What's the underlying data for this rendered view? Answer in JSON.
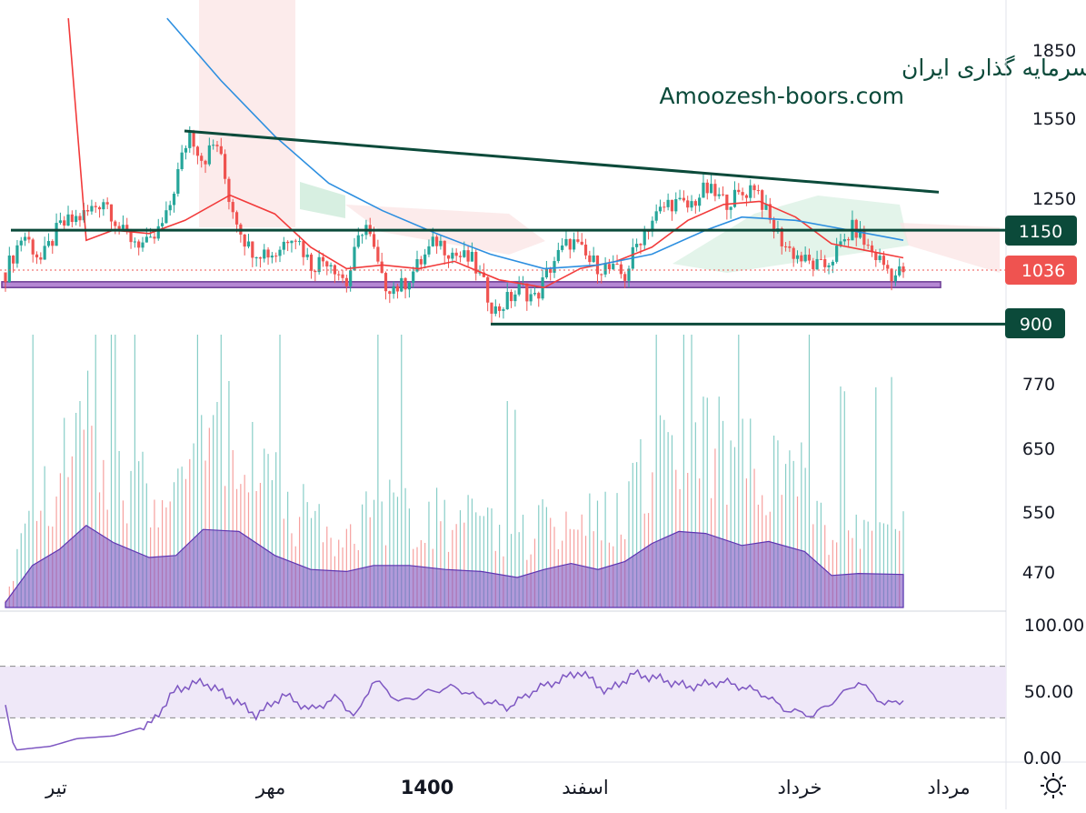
{
  "watermark": {
    "line1": "انجمن خبرگان سرمایه گذاری ایران",
    "line2": "Amoozesh-boors.com"
  },
  "colors": {
    "up": "#26a69a",
    "down": "#ef5350",
    "trend_line": "#0b4a3a",
    "support_zone": "#9c5fc4",
    "ma_fast": "#f23b3b",
    "ma_slow": "#2d8fe0",
    "volume_area": "#7e57c2",
    "rsi_line": "#7e57c2",
    "rsi_band": "#efe8f8",
    "last_price": "#ef5350",
    "level_label": "#0b4a3a"
  },
  "icons": {
    "settings": "sun-icon"
  },
  "chart_data": {
    "type": "candlestick",
    "title": "",
    "price_axis": {
      "scale": "log",
      "ticks": [
        "1850",
        "1550",
        "1250",
        "770",
        "650",
        "550",
        "470"
      ],
      "range": [
        400,
        2000
      ]
    },
    "levels": [
      {
        "value": 1150,
        "label": "1150"
      },
      {
        "value": 900,
        "label": "900"
      }
    ],
    "last_price": {
      "value": 1036,
      "label": "1036"
    },
    "support_zone": {
      "low": 990,
      "high": 1005
    },
    "descending_trendline": {
      "start": 1490,
      "end": 1270
    },
    "price_points": [
      {
        "t": 0,
        "v": 1030
      },
      {
        "t": 0.02,
        "v": 1140
      },
      {
        "t": 0.04,
        "v": 1060
      },
      {
        "t": 0.06,
        "v": 1160
      },
      {
        "t": 0.09,
        "v": 1200
      },
      {
        "t": 0.11,
        "v": 1250
      },
      {
        "t": 0.13,
        "v": 1140
      },
      {
        "t": 0.16,
        "v": 1100
      },
      {
        "t": 0.18,
        "v": 1190
      },
      {
        "t": 0.205,
        "v": 1490
      },
      {
        "t": 0.22,
        "v": 1380
      },
      {
        "t": 0.235,
        "v": 1450
      },
      {
        "t": 0.25,
        "v": 1240
      },
      {
        "t": 0.27,
        "v": 1100
      },
      {
        "t": 0.3,
        "v": 1080
      },
      {
        "t": 0.32,
        "v": 1150
      },
      {
        "t": 0.34,
        "v": 1050
      },
      {
        "t": 0.36,
        "v": 1070
      },
      {
        "t": 0.38,
        "v": 1000
      },
      {
        "t": 0.4,
        "v": 1180
      },
      {
        "t": 0.42,
        "v": 1000
      },
      {
        "t": 0.44,
        "v": 990
      },
      {
        "t": 0.46,
        "v": 1050
      },
      {
        "t": 0.48,
        "v": 1120
      },
      {
        "t": 0.5,
        "v": 1080
      },
      {
        "t": 0.52,
        "v": 1060
      },
      {
        "t": 0.545,
        "v": 930
      },
      {
        "t": 0.56,
        "v": 960
      },
      {
        "t": 0.575,
        "v": 990
      },
      {
        "t": 0.59,
        "v": 960
      },
      {
        "t": 0.61,
        "v": 1060
      },
      {
        "t": 0.63,
        "v": 1120
      },
      {
        "t": 0.65,
        "v": 1060
      },
      {
        "t": 0.67,
        "v": 1040
      },
      {
        "t": 0.69,
        "v": 1020
      },
      {
        "t": 0.705,
        "v": 1120
      },
      {
        "t": 0.72,
        "v": 1180
      },
      {
        "t": 0.74,
        "v": 1240
      },
      {
        "t": 0.76,
        "v": 1220
      },
      {
        "t": 0.78,
        "v": 1280
      },
      {
        "t": 0.8,
        "v": 1240
      },
      {
        "t": 0.82,
        "v": 1260
      },
      {
        "t": 0.835,
        "v": 1300
      },
      {
        "t": 0.85,
        "v": 1180
      },
      {
        "t": 0.87,
        "v": 1100
      },
      {
        "t": 0.89,
        "v": 1060
      },
      {
        "t": 0.91,
        "v": 1040
      },
      {
        "t": 0.93,
        "v": 1100
      },
      {
        "t": 0.945,
        "v": 1160
      },
      {
        "t": 0.96,
        "v": 1100
      },
      {
        "t": 0.975,
        "v": 1060
      },
      {
        "t": 0.99,
        "v": 1020
      },
      {
        "t": 1.0,
        "v": 1036
      }
    ],
    "ma_fast_points": [
      {
        "t": 0.07,
        "v": 2000
      },
      {
        "t": 0.08,
        "v": 1500
      },
      {
        "t": 0.09,
        "v": 1120
      },
      {
        "t": 0.12,
        "v": 1150
      },
      {
        "t": 0.16,
        "v": 1140
      },
      {
        "t": 0.2,
        "v": 1180
      },
      {
        "t": 0.25,
        "v": 1260
      },
      {
        "t": 0.3,
        "v": 1200
      },
      {
        "t": 0.34,
        "v": 1100
      },
      {
        "t": 0.38,
        "v": 1040
      },
      {
        "t": 0.42,
        "v": 1050
      },
      {
        "t": 0.46,
        "v": 1040
      },
      {
        "t": 0.5,
        "v": 1060
      },
      {
        "t": 0.55,
        "v": 1010
      },
      {
        "t": 0.6,
        "v": 990
      },
      {
        "t": 0.64,
        "v": 1040
      },
      {
        "t": 0.68,
        "v": 1060
      },
      {
        "t": 0.72,
        "v": 1100
      },
      {
        "t": 0.76,
        "v": 1180
      },
      {
        "t": 0.8,
        "v": 1230
      },
      {
        "t": 0.84,
        "v": 1240
      },
      {
        "t": 0.88,
        "v": 1190
      },
      {
        "t": 0.92,
        "v": 1110
      },
      {
        "t": 0.96,
        "v": 1090
      },
      {
        "t": 1.0,
        "v": 1070
      }
    ],
    "ma_slow_points": [
      {
        "t": 0.18,
        "v": 2000
      },
      {
        "t": 0.24,
        "v": 1700
      },
      {
        "t": 0.3,
        "v": 1470
      },
      {
        "t": 0.36,
        "v": 1300
      },
      {
        "t": 0.42,
        "v": 1210
      },
      {
        "t": 0.48,
        "v": 1140
      },
      {
        "t": 0.54,
        "v": 1080
      },
      {
        "t": 0.6,
        "v": 1040
      },
      {
        "t": 0.66,
        "v": 1050
      },
      {
        "t": 0.72,
        "v": 1080
      },
      {
        "t": 0.78,
        "v": 1150
      },
      {
        "t": 0.82,
        "v": 1190
      },
      {
        "t": 0.88,
        "v": 1180
      },
      {
        "t": 0.94,
        "v": 1150
      },
      {
        "t": 1.0,
        "v": 1120
      }
    ],
    "volume_points": [
      {
        "t": 0,
        "v": 0.05
      },
      {
        "t": 0.03,
        "v": 0.42
      },
      {
        "t": 0.06,
        "v": 0.58
      },
      {
        "t": 0.09,
        "v": 0.82
      },
      {
        "t": 0.12,
        "v": 0.65
      },
      {
        "t": 0.16,
        "v": 0.5
      },
      {
        "t": 0.19,
        "v": 0.52
      },
      {
        "t": 0.22,
        "v": 0.78
      },
      {
        "t": 0.26,
        "v": 0.76
      },
      {
        "t": 0.3,
        "v": 0.52
      },
      {
        "t": 0.34,
        "v": 0.38
      },
      {
        "t": 0.38,
        "v": 0.36
      },
      {
        "t": 0.41,
        "v": 0.42
      },
      {
        "t": 0.45,
        "v": 0.42
      },
      {
        "t": 0.49,
        "v": 0.38
      },
      {
        "t": 0.53,
        "v": 0.36
      },
      {
        "t": 0.57,
        "v": 0.3
      },
      {
        "t": 0.6,
        "v": 0.38
      },
      {
        "t": 0.63,
        "v": 0.44
      },
      {
        "t": 0.66,
        "v": 0.38
      },
      {
        "t": 0.69,
        "v": 0.46
      },
      {
        "t": 0.72,
        "v": 0.64
      },
      {
        "t": 0.75,
        "v": 0.76
      },
      {
        "t": 0.78,
        "v": 0.74
      },
      {
        "t": 0.82,
        "v": 0.62
      },
      {
        "t": 0.85,
        "v": 0.66
      },
      {
        "t": 0.89,
        "v": 0.56
      },
      {
        "t": 0.92,
        "v": 0.32
      },
      {
        "t": 0.95,
        "v": 0.34
      },
      {
        "t": 1.0,
        "v": 0.33
      }
    ],
    "rsi": {
      "ticks": [
        "100.00",
        "50.00",
        "0.00"
      ],
      "band": [
        30,
        70
      ],
      "points": [
        {
          "t": 0,
          "v": 40
        },
        {
          "t": 0.01,
          "v": 5
        },
        {
          "t": 0.05,
          "v": 8
        },
        {
          "t": 0.08,
          "v": 14
        },
        {
          "t": 0.12,
          "v": 16
        },
        {
          "t": 0.16,
          "v": 24
        },
        {
          "t": 0.19,
          "v": 52
        },
        {
          "t": 0.22,
          "v": 58
        },
        {
          "t": 0.25,
          "v": 46
        },
        {
          "t": 0.28,
          "v": 32
        },
        {
          "t": 0.31,
          "v": 48
        },
        {
          "t": 0.34,
          "v": 36
        },
        {
          "t": 0.37,
          "v": 46
        },
        {
          "t": 0.39,
          "v": 30
        },
        {
          "t": 0.41,
          "v": 60
        },
        {
          "t": 0.44,
          "v": 42
        },
        {
          "t": 0.47,
          "v": 50
        },
        {
          "t": 0.5,
          "v": 54
        },
        {
          "t": 0.53,
          "v": 44
        },
        {
          "t": 0.56,
          "v": 38
        },
        {
          "t": 0.59,
          "v": 52
        },
        {
          "t": 0.62,
          "v": 60
        },
        {
          "t": 0.64,
          "v": 66
        },
        {
          "t": 0.67,
          "v": 50
        },
        {
          "t": 0.7,
          "v": 64
        },
        {
          "t": 0.73,
          "v": 60
        },
        {
          "t": 0.76,
          "v": 54
        },
        {
          "t": 0.8,
          "v": 58
        },
        {
          "t": 0.84,
          "v": 50
        },
        {
          "t": 0.87,
          "v": 36
        },
        {
          "t": 0.9,
          "v": 32
        },
        {
          "t": 0.92,
          "v": 42
        },
        {
          "t": 0.95,
          "v": 58
        },
        {
          "t": 0.98,
          "v": 40
        },
        {
          "t": 1.0,
          "v": 44
        }
      ]
    },
    "time_axis": [
      {
        "label": "تیر",
        "bold": false
      },
      {
        "label": "مهر",
        "bold": false
      },
      {
        "label": "1400",
        "bold": true
      },
      {
        "label": "اسفند",
        "bold": false
      },
      {
        "label": "خرداد",
        "bold": false
      },
      {
        "label": "مرداد",
        "bold": false
      }
    ]
  }
}
